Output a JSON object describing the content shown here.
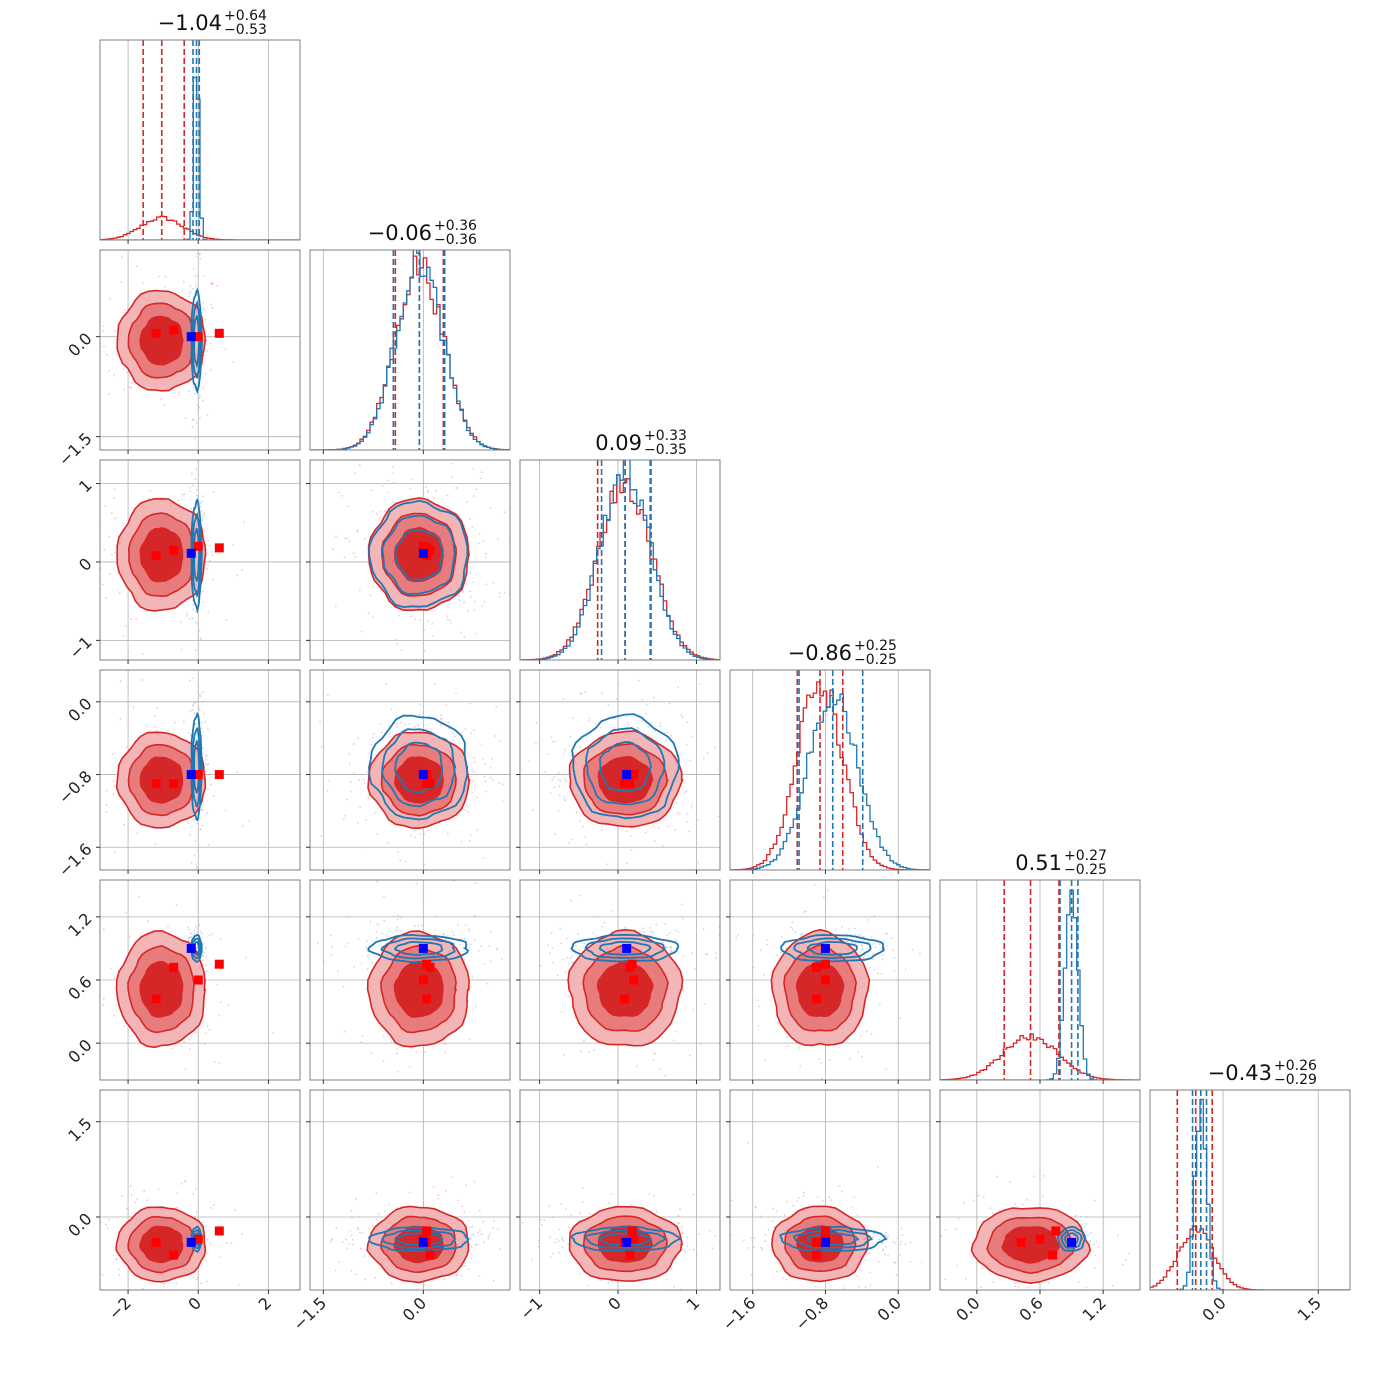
{
  "figure": {
    "type": "corner_plot",
    "n_params": 6,
    "colors": {
      "posterior_a": "#d62728",
      "posterior_a_fill_light": "#f3b5b5",
      "posterior_a_fill_mid": "#e87b7b",
      "posterior_b": "#1f77b4",
      "truth_a_marker": "#ff0000",
      "truth_b_marker": "#0000ff"
    }
  },
  "chart_data": {
    "type": "corner",
    "titles": [
      {
        "value": "−1.04",
        "plus": "+0.64",
        "minus": "−0.53"
      },
      {
        "value": "−0.06",
        "plus": "+0.36",
        "minus": "−0.36"
      },
      {
        "value": "0.09",
        "plus": "+0.33",
        "minus": "−0.35"
      },
      {
        "value": "−0.86",
        "plus": "+0.25",
        "minus": "−0.25"
      },
      {
        "value": "0.51",
        "plus": "+0.27",
        "minus": "−0.25"
      },
      {
        "value": "−0.43",
        "plus": "+0.26",
        "minus": "−0.29"
      }
    ],
    "params": [
      {
        "range": [
          -2.8,
          2.9
        ],
        "ticks": [
          -2,
          0,
          2
        ],
        "tick_labels": [
          "−2",
          "0",
          "2"
        ]
      },
      {
        "range": [
          -1.7,
          1.3
        ],
        "ticks": [
          -1.5,
          0.0
        ],
        "tick_labels": [
          "−1.5",
          "0.0"
        ]
      },
      {
        "range": [
          -1.25,
          1.3
        ],
        "ticks": [
          -1,
          0,
          1
        ],
        "tick_labels": [
          "−1",
          "0",
          "1"
        ]
      },
      {
        "range": [
          -1.85,
          0.35
        ],
        "ticks": [
          -1.6,
          -0.8,
          0.0
        ],
        "tick_labels": [
          "−1.6",
          "−0.8",
          "0.0"
        ]
      },
      {
        "range": [
          -0.35,
          1.55
        ],
        "ticks": [
          0.0,
          0.6,
          1.2
        ],
        "tick_labels": [
          "0.0",
          "0.6",
          "1.2"
        ]
      },
      {
        "range": [
          -1.15,
          2.0
        ],
        "ticks": [
          0.0,
          1.5
        ],
        "tick_labels": [
          "0.0",
          "1.5"
        ]
      }
    ],
    "posteriors": [
      {
        "name": "",
        "color": "#d62728",
        "mean": [
          -1.04,
          -0.06,
          0.09,
          -0.86,
          0.51,
          -0.43
        ],
        "sd": [
          0.6,
          0.36,
          0.34,
          0.25,
          0.26,
          0.28
        ],
        "quantiles": [
          [
            -1.57,
            -1.04,
            -0.4
          ],
          [
            -0.42,
            -0.06,
            0.3
          ],
          [
            -0.26,
            0.09,
            0.42
          ],
          [
            -1.11,
            -0.86,
            -0.61
          ],
          [
            0.26,
            0.51,
            0.78
          ],
          [
            -0.72,
            -0.43,
            -0.17
          ]
        ]
      },
      {
        "name": "",
        "color": "#1f77b4",
        "mean": [
          -0.05,
          -0.06,
          0.09,
          -0.72,
          0.9,
          -0.35
        ],
        "sd": [
          0.07,
          0.35,
          0.32,
          0.27,
          0.06,
          0.09
        ],
        "quantiles": [
          [
            -0.15,
            -0.05,
            0.03
          ],
          [
            -0.45,
            -0.06,
            0.32
          ],
          [
            -0.21,
            0.09,
            0.41
          ],
          [
            -1.09,
            -0.72,
            -0.39
          ],
          [
            0.79,
            0.9,
            0.96
          ],
          [
            -0.48,
            -0.35,
            -0.26
          ]
        ]
      }
    ],
    "markers_a": [
      [
        -1.2,
        0.05,
        0.08,
        -0.9,
        0.42,
        -0.4
      ],
      [
        -0.7,
        0.1,
        0.15,
        -0.9,
        0.72,
        -0.6
      ],
      [
        0.0,
        0.0,
        0.2,
        -0.8,
        0.6,
        -0.35
      ],
      [
        0.6,
        0.05,
        0.18,
        -0.8,
        0.75,
        -0.22
      ]
    ],
    "marker_b": [
      -0.2,
      0.0,
      0.11,
      -0.8,
      0.9,
      -0.4
    ],
    "grid": true
  }
}
